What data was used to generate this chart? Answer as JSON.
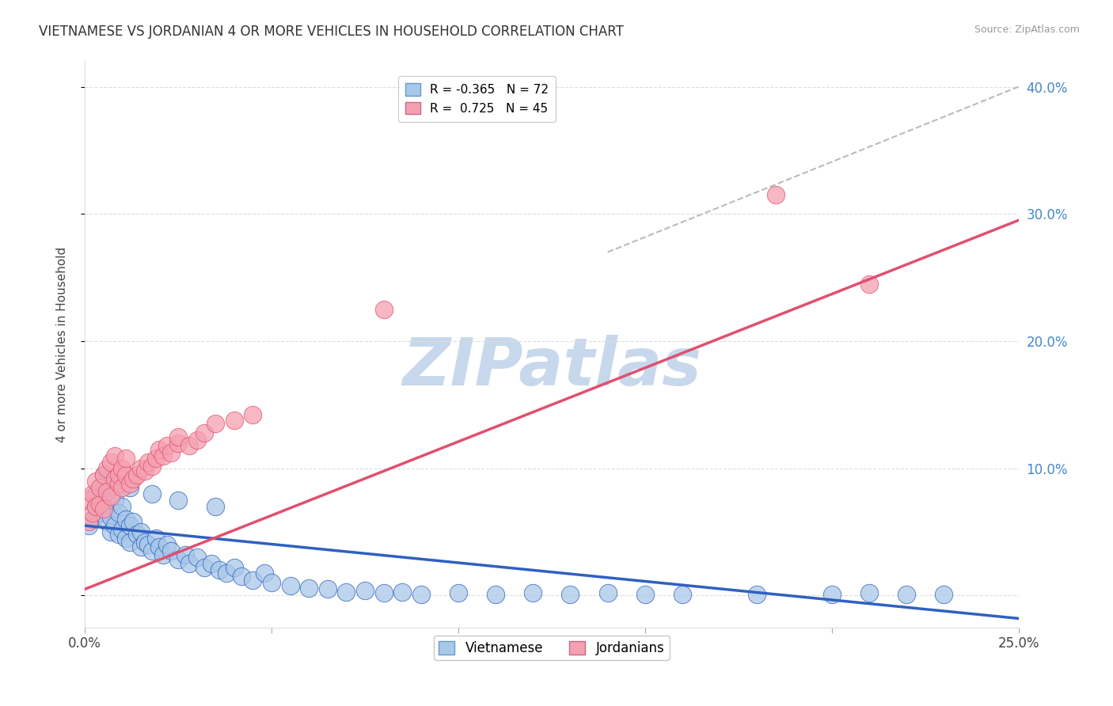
{
  "title": "VIETNAMESE VS JORDANIAN 4 OR MORE VEHICLES IN HOUSEHOLD CORRELATION CHART",
  "source": "Source: ZipAtlas.com",
  "ylabel": "4 or more Vehicles in Household",
  "xlim": [
    0.0,
    0.25
  ],
  "ylim": [
    -0.025,
    0.42
  ],
  "R_vietnamese": -0.365,
  "N_vietnamese": 72,
  "R_jordanian": 0.725,
  "N_jordanian": 45,
  "color_vietnamese": "#A8C8E8",
  "color_jordanian": "#F5A0B0",
  "color_line_vietnamese": "#3060C0",
  "color_line_jordanian": "#E05070",
  "color_diagonal": "#BBBBBB",
  "watermark": "ZIPatlas",
  "watermark_color": "#C8D8EC",
  "grid_color": "#DDDDDD",
  "background_color": "#FFFFFF",
  "viet_line_x0": 0.0,
  "viet_line_y0": 0.055,
  "viet_line_x1": 0.25,
  "viet_line_y1": -0.018,
  "jord_line_x0": 0.0,
  "jord_line_y0": 0.005,
  "jord_line_x1": 0.25,
  "jord_line_y1": 0.295,
  "diag_line_x0": 0.14,
  "diag_line_y0": 0.27,
  "diag_line_x1": 0.25,
  "diag_line_y1": 0.4,
  "viet_x": [
    0.001,
    0.002,
    0.003,
    0.003,
    0.004,
    0.005,
    0.005,
    0.006,
    0.006,
    0.007,
    0.007,
    0.008,
    0.008,
    0.009,
    0.009,
    0.01,
    0.01,
    0.011,
    0.011,
    0.012,
    0.012,
    0.013,
    0.014,
    0.015,
    0.015,
    0.016,
    0.017,
    0.018,
    0.019,
    0.02,
    0.021,
    0.022,
    0.023,
    0.025,
    0.027,
    0.028,
    0.03,
    0.032,
    0.034,
    0.036,
    0.038,
    0.04,
    0.042,
    0.045,
    0.048,
    0.05,
    0.055,
    0.06,
    0.065,
    0.07,
    0.075,
    0.08,
    0.085,
    0.09,
    0.1,
    0.11,
    0.12,
    0.13,
    0.14,
    0.15,
    0.16,
    0.18,
    0.2,
    0.21,
    0.22,
    0.23,
    0.005,
    0.008,
    0.012,
    0.018,
    0.025,
    0.035
  ],
  "viet_y": [
    0.055,
    0.06,
    0.07,
    0.08,
    0.065,
    0.072,
    0.085,
    0.068,
    0.058,
    0.062,
    0.05,
    0.055,
    0.075,
    0.048,
    0.065,
    0.052,
    0.07,
    0.045,
    0.06,
    0.042,
    0.055,
    0.058,
    0.048,
    0.05,
    0.038,
    0.042,
    0.04,
    0.035,
    0.045,
    0.038,
    0.032,
    0.04,
    0.035,
    0.028,
    0.032,
    0.025,
    0.03,
    0.022,
    0.025,
    0.02,
    0.018,
    0.022,
    0.015,
    0.012,
    0.018,
    0.01,
    0.008,
    0.006,
    0.005,
    0.003,
    0.004,
    0.002,
    0.003,
    0.001,
    0.002,
    0.001,
    0.002,
    0.001,
    0.002,
    0.001,
    0.001,
    0.001,
    0.001,
    0.002,
    0.001,
    0.001,
    0.095,
    0.09,
    0.085,
    0.08,
    0.075,
    0.07
  ],
  "jord_x": [
    0.001,
    0.001,
    0.002,
    0.002,
    0.003,
    0.003,
    0.004,
    0.004,
    0.005,
    0.005,
    0.006,
    0.006,
    0.007,
    0.007,
    0.008,
    0.008,
    0.009,
    0.009,
    0.01,
    0.01,
    0.011,
    0.011,
    0.012,
    0.013,
    0.014,
    0.015,
    0.016,
    0.017,
    0.018,
    0.019,
    0.02,
    0.021,
    0.022,
    0.023,
    0.025,
    0.025,
    0.028,
    0.03,
    0.032,
    0.035,
    0.04,
    0.045,
    0.08,
    0.185,
    0.21
  ],
  "jord_y": [
    0.058,
    0.075,
    0.065,
    0.08,
    0.07,
    0.09,
    0.072,
    0.085,
    0.068,
    0.095,
    0.082,
    0.1,
    0.078,
    0.105,
    0.092,
    0.11,
    0.088,
    0.095,
    0.1,
    0.085,
    0.095,
    0.108,
    0.088,
    0.092,
    0.095,
    0.1,
    0.098,
    0.105,
    0.102,
    0.108,
    0.115,
    0.11,
    0.118,
    0.112,
    0.12,
    0.125,
    0.118,
    0.122,
    0.128,
    0.135,
    0.138,
    0.142,
    0.225,
    0.315,
    0.245
  ]
}
